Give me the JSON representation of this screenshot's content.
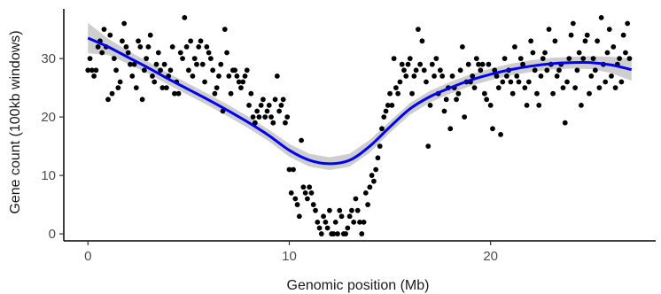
{
  "chart_data": {
    "type": "scatter",
    "title": "",
    "xlabel": "Genomic position (Mb)",
    "ylabel": "Gene count (100kb windows)",
    "xlim": [
      -1.2,
      28.2
    ],
    "ylim": [
      -1.2,
      38.5
    ],
    "x_ticks": [
      0,
      10,
      20
    ],
    "y_ticks": [
      0,
      10,
      20,
      30
    ],
    "grid": false,
    "legend": "none",
    "point_color": "#000000",
    "smooth_color": "#0000ee",
    "band_color": "#bdbdbd",
    "series": [
      {
        "points": [
          [
            0.0,
            28
          ],
          [
            0.1,
            30
          ],
          [
            0.2,
            28
          ],
          [
            0.3,
            27
          ],
          [
            0.4,
            28
          ],
          [
            0.5,
            32
          ],
          [
            0.6,
            33
          ],
          [
            0.7,
            31
          ],
          [
            0.8,
            35
          ],
          [
            0.9,
            32
          ],
          [
            1.0,
            23
          ],
          [
            1.1,
            34
          ],
          [
            1.2,
            24
          ],
          [
            1.3,
            30
          ],
          [
            1.4,
            28
          ],
          [
            1.5,
            25
          ],
          [
            1.6,
            26
          ],
          [
            1.7,
            33
          ],
          [
            1.8,
            36
          ],
          [
            1.9,
            32
          ],
          [
            2.0,
            31
          ],
          [
            2.1,
            29
          ],
          [
            2.2,
            27
          ],
          [
            2.3,
            29
          ],
          [
            2.4,
            25
          ],
          [
            2.5,
            33
          ],
          [
            2.6,
            32
          ],
          [
            2.7,
            23
          ],
          [
            2.8,
            28
          ],
          [
            2.9,
            30
          ],
          [
            3.0,
            32
          ],
          [
            3.1,
            34
          ],
          [
            3.2,
            27
          ],
          [
            3.3,
            26
          ],
          [
            3.4,
            29
          ],
          [
            3.5,
            31
          ],
          [
            3.6,
            28
          ],
          [
            3.7,
            25
          ],
          [
            3.8,
            29
          ],
          [
            3.9,
            25
          ],
          [
            4.0,
            27
          ],
          [
            4.1,
            28
          ],
          [
            4.2,
            32
          ],
          [
            4.3,
            24
          ],
          [
            4.4,
            26
          ],
          [
            4.5,
            24
          ],
          [
            4.6,
            31
          ],
          [
            4.7,
            30
          ],
          [
            4.8,
            37
          ],
          [
            4.9,
            32
          ],
          [
            5.0,
            28
          ],
          [
            5.1,
            33
          ],
          [
            5.2,
            27
          ],
          [
            5.3,
            30
          ],
          [
            5.4,
            29
          ],
          [
            5.5,
            32
          ],
          [
            5.6,
            33
          ],
          [
            5.7,
            29
          ],
          [
            5.8,
            26
          ],
          [
            5.9,
            32
          ],
          [
            6.0,
            31
          ],
          [
            6.1,
            30
          ],
          [
            6.2,
            28
          ],
          [
            6.3,
            24
          ],
          [
            6.4,
            25
          ],
          [
            6.5,
            27
          ],
          [
            6.6,
            29
          ],
          [
            6.7,
            21
          ],
          [
            6.8,
            35
          ],
          [
            6.9,
            31
          ],
          [
            7.0,
            27
          ],
          [
            7.1,
            24
          ],
          [
            7.2,
            28
          ],
          [
            7.3,
            28
          ],
          [
            7.4,
            27
          ],
          [
            7.5,
            26
          ],
          [
            7.6,
            25
          ],
          [
            7.7,
            26
          ],
          [
            7.8,
            27
          ],
          [
            7.9,
            28
          ],
          [
            8.0,
            22
          ],
          [
            8.1,
            24
          ],
          [
            8.2,
            20
          ],
          [
            8.3,
            19
          ],
          [
            8.4,
            21
          ],
          [
            8.5,
            20
          ],
          [
            8.6,
            22
          ],
          [
            8.7,
            23
          ],
          [
            8.8,
            20
          ],
          [
            8.9,
            21
          ],
          [
            9.0,
            22
          ],
          [
            9.1,
            20
          ],
          [
            9.2,
            19
          ],
          [
            9.3,
            23
          ],
          [
            9.4,
            27
          ],
          [
            9.5,
            21
          ],
          [
            9.6,
            22
          ],
          [
            9.7,
            23
          ],
          [
            9.8,
            19
          ],
          [
            9.9,
            20
          ],
          [
            10.0,
            11
          ],
          [
            10.1,
            7
          ],
          [
            10.2,
            11
          ],
          [
            10.3,
            6
          ],
          [
            10.4,
            5
          ],
          [
            10.5,
            3
          ],
          [
            10.6,
            16
          ],
          [
            10.7,
            8
          ],
          [
            10.8,
            7
          ],
          [
            10.9,
            6
          ],
          [
            11.0,
            8
          ],
          [
            11.1,
            7
          ],
          [
            11.2,
            5
          ],
          [
            11.3,
            4
          ],
          [
            11.4,
            2
          ],
          [
            11.5,
            1
          ],
          [
            11.6,
            0
          ],
          [
            11.7,
            3
          ],
          [
            11.8,
            2
          ],
          [
            11.9,
            1
          ],
          [
            12.0,
            4
          ],
          [
            12.1,
            0
          ],
          [
            12.2,
            0
          ],
          [
            12.3,
            2
          ],
          [
            12.4,
            0
          ],
          [
            12.5,
            4
          ],
          [
            12.6,
            3
          ],
          [
            12.7,
            0
          ],
          [
            12.8,
            0
          ],
          [
            12.9,
            1
          ],
          [
            13.0,
            3
          ],
          [
            13.1,
            4
          ],
          [
            13.2,
            2
          ],
          [
            13.3,
            6
          ],
          [
            13.4,
            4
          ],
          [
            13.5,
            2
          ],
          [
            13.6,
            0
          ],
          [
            13.7,
            2
          ],
          [
            13.8,
            7
          ],
          [
            13.9,
            5
          ],
          [
            14.0,
            8
          ],
          [
            14.1,
            10
          ],
          [
            14.2,
            9
          ],
          [
            14.3,
            11
          ],
          [
            14.4,
            13
          ],
          [
            14.5,
            15
          ],
          [
            14.6,
            18
          ],
          [
            14.7,
            20
          ],
          [
            14.8,
            21
          ],
          [
            14.9,
            22
          ],
          [
            15.0,
            24
          ],
          [
            15.1,
            22
          ],
          [
            15.2,
            30
          ],
          [
            15.3,
            25
          ],
          [
            15.4,
            24
          ],
          [
            15.5,
            26
          ],
          [
            15.6,
            29
          ],
          [
            15.7,
            28
          ],
          [
            15.8,
            27
          ],
          [
            15.9,
            29
          ],
          [
            16.0,
            30
          ],
          [
            16.1,
            24
          ],
          [
            16.2,
            27
          ],
          [
            16.3,
            28
          ],
          [
            16.4,
            35
          ],
          [
            16.5,
            29
          ],
          [
            16.6,
            33
          ],
          [
            16.7,
            28
          ],
          [
            16.8,
            26
          ],
          [
            16.9,
            15
          ],
          [
            17.0,
            22
          ],
          [
            17.1,
            29
          ],
          [
            17.2,
            27
          ],
          [
            17.3,
            30
          ],
          [
            17.4,
            24
          ],
          [
            17.5,
            28
          ],
          [
            17.6,
            27
          ],
          [
            17.7,
            21
          ],
          [
            17.8,
            23
          ],
          [
            17.9,
            25
          ],
          [
            18.0,
            18
          ],
          [
            18.1,
            27
          ],
          [
            18.2,
            25
          ],
          [
            18.3,
            23
          ],
          [
            18.4,
            24
          ],
          [
            18.5,
            28
          ],
          [
            18.6,
            32
          ],
          [
            18.7,
            20
          ],
          [
            18.8,
            26
          ],
          [
            18.9,
            29
          ],
          [
            19.0,
            26
          ],
          [
            19.1,
            27
          ],
          [
            19.2,
            25
          ],
          [
            19.3,
            30
          ],
          [
            19.4,
            29
          ],
          [
            19.5,
            28
          ],
          [
            19.6,
            29
          ],
          [
            19.7,
            24
          ],
          [
            19.8,
            23
          ],
          [
            19.9,
            29
          ],
          [
            20.0,
            22
          ],
          [
            20.1,
            18
          ],
          [
            20.2,
            28
          ],
          [
            20.3,
            27
          ],
          [
            20.4,
            25
          ],
          [
            20.5,
            17
          ],
          [
            20.6,
            26
          ],
          [
            20.7,
            30
          ],
          [
            20.8,
            27
          ],
          [
            20.9,
            28
          ],
          [
            21.0,
            26
          ],
          [
            21.1,
            24
          ],
          [
            21.2,
            32
          ],
          [
            21.3,
            27
          ],
          [
            21.4,
            26
          ],
          [
            21.5,
            30
          ],
          [
            21.6,
            29
          ],
          [
            21.7,
            25
          ],
          [
            21.8,
            22
          ],
          [
            21.9,
            26
          ],
          [
            22.0,
            33
          ],
          [
            22.1,
            31
          ],
          [
            22.2,
            28
          ],
          [
            22.3,
            24
          ],
          [
            22.4,
            22
          ],
          [
            22.5,
            27
          ],
          [
            22.6,
            30
          ],
          [
            22.7,
            31
          ],
          [
            22.8,
            28
          ],
          [
            22.9,
            35
          ],
          [
            23.0,
            29
          ],
          [
            23.1,
            24
          ],
          [
            23.2,
            33
          ],
          [
            23.3,
            27
          ],
          [
            23.4,
            28
          ],
          [
            23.5,
            29
          ],
          [
            23.6,
            25
          ],
          [
            23.7,
            19
          ],
          [
            23.8,
            26
          ],
          [
            23.9,
            30
          ],
          [
            24.0,
            34
          ],
          [
            24.1,
            36
          ],
          [
            24.2,
            25
          ],
          [
            24.3,
            28
          ],
          [
            24.4,
            31
          ],
          [
            24.5,
            22
          ],
          [
            24.6,
            30
          ],
          [
            24.7,
            33
          ],
          [
            24.8,
            34
          ],
          [
            24.9,
            24
          ],
          [
            25.0,
            27
          ],
          [
            25.1,
            30
          ],
          [
            25.2,
            28
          ],
          [
            25.3,
            33
          ],
          [
            25.4,
            25
          ],
          [
            25.5,
            37
          ],
          [
            25.6,
            29
          ],
          [
            25.7,
            26
          ],
          [
            25.8,
            31
          ],
          [
            25.9,
            35
          ],
          [
            26.0,
            27
          ],
          [
            26.1,
            32
          ],
          [
            26.2,
            25
          ],
          [
            26.3,
            29
          ],
          [
            26.4,
            30
          ],
          [
            26.5,
            26
          ],
          [
            26.6,
            34
          ],
          [
            26.7,
            31
          ],
          [
            26.8,
            36
          ],
          [
            26.9,
            30
          ]
        ]
      }
    ],
    "smooth": {
      "x": [
        0,
        1,
        2,
        3,
        4,
        5,
        6,
        7,
        8,
        9,
        10,
        11,
        12,
        13,
        14,
        15,
        16,
        17,
        18,
        19,
        20,
        21,
        22,
        23,
        24,
        25,
        26,
        27
      ],
      "y": [
        33.5,
        32.0,
        30.2,
        28.4,
        26.5,
        24.7,
        22.9,
        21.0,
        19.0,
        16.8,
        14.3,
        12.6,
        12.0,
        12.6,
        15.0,
        18.3,
        21.4,
        23.5,
        25.0,
        26.3,
        27.3,
        28.1,
        28.7,
        29.1,
        29.3,
        29.3,
        28.9,
        28.1
      ],
      "ci": [
        2.6,
        1.4,
        1.1,
        1.0,
        1.0,
        1.0,
        1.0,
        1.0,
        1.0,
        1.0,
        1.1,
        1.1,
        1.1,
        1.1,
        1.1,
        1.0,
        1.0,
        1.0,
        1.0,
        1.0,
        1.0,
        1.0,
        1.0,
        1.0,
        1.0,
        1.1,
        1.4,
        1.9
      ]
    }
  }
}
